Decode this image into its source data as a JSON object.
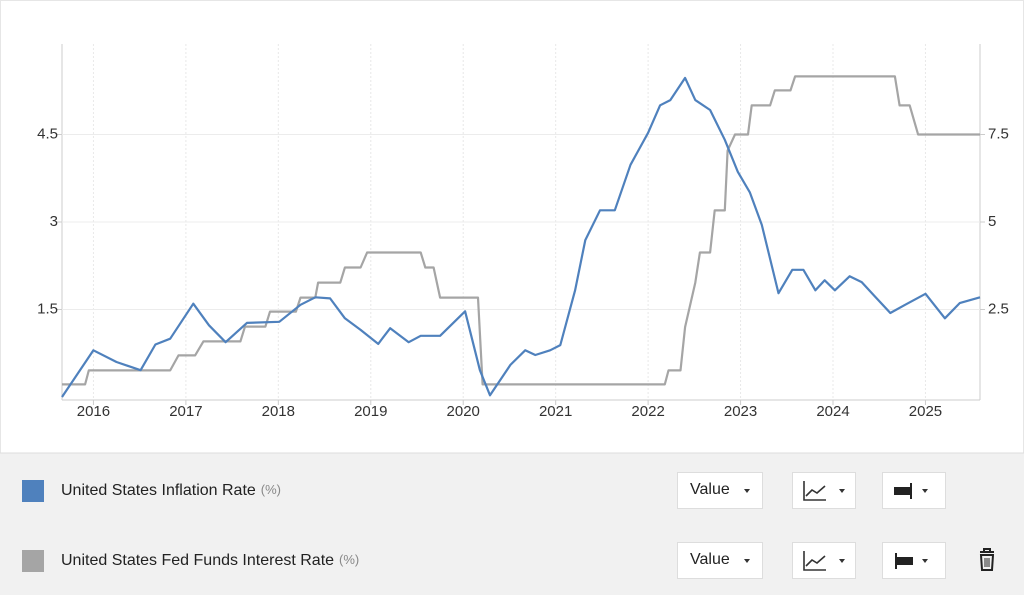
{
  "chart_data": {
    "type": "line",
    "xlim": [
      2015.66,
      2025.59
    ],
    "xticks": [
      2016,
      2017,
      2018,
      2019,
      2020,
      2021,
      2022,
      2023,
      2024,
      2025
    ],
    "ylim": [
      0,
      6
    ],
    "yticks": [
      1.5,
      3,
      4.5
    ],
    "y2lim": [
      0,
      10
    ],
    "y2ticks": [
      2.5,
      5,
      7.5
    ],
    "grid": true,
    "series": [
      {
        "name": "United States Inflation Rate",
        "unit": "(%)",
        "mode": "Value",
        "color": "#4f81bd",
        "x": [
          2015.66,
          2016.0,
          2016.25,
          2016.51,
          2016.67,
          2016.83,
          2017.08,
          2017.25,
          2017.43,
          2017.66,
          2018.01,
          2018.24,
          2018.4,
          2018.56,
          2018.72,
          2018.89,
          2019.08,
          2019.21,
          2019.41,
          2019.54,
          2019.75,
          2020.02,
          2020.18,
          2020.29,
          2020.51,
          2020.67,
          2020.78,
          2020.94,
          2021.05,
          2021.21,
          2021.32,
          2021.48,
          2021.64,
          2021.81,
          2022.0,
          2022.13,
          2022.24,
          2022.4,
          2022.51,
          2022.67,
          2022.83,
          2022.97,
          2023.1,
          2023.23,
          2023.41,
          2023.56,
          2023.68,
          2023.81,
          2023.91,
          2024.02,
          2024.18,
          2024.31,
          2024.45,
          2024.62,
          2024.78,
          2025.0,
          2025.21,
          2025.37,
          2025.59
        ],
        "values": [
          0,
          0.8,
          0.6,
          0.46,
          0.9,
          1.0,
          1.6,
          1.23,
          0.94,
          1.27,
          1.29,
          1.58,
          1.71,
          1.69,
          1.35,
          1.15,
          0.91,
          1.18,
          0.94,
          1.05,
          1.05,
          1.47,
          0.46,
          0.03,
          0.55,
          0.8,
          0.72,
          0.8,
          0.89,
          1.83,
          2.69,
          3.2,
          3.2,
          3.98,
          4.53,
          5.0,
          5.09,
          5.47,
          5.09,
          4.92,
          4.41,
          3.86,
          3.51,
          2.95,
          1.78,
          2.18,
          2.18,
          1.83,
          2.0,
          1.83,
          2.07,
          1.97,
          1.73,
          1.44,
          1.58,
          1.77,
          1.35,
          1.61,
          1.71
        ]
      },
      {
        "name": "United States Fed Funds Interest Rate",
        "unit": "(%)",
        "mode": "Value",
        "color": "#a5a5a5",
        "axis": "y2",
        "x": [
          2015.66,
          2015.91,
          2015.95,
          2016.83,
          2016.92,
          2017.1,
          2017.19,
          2017.59,
          2017.64,
          2017.86,
          2017.91,
          2018.19,
          2018.24,
          2018.4,
          2018.43,
          2018.67,
          2018.72,
          2018.89,
          2018.96,
          2019.54,
          2019.59,
          2019.68,
          2019.75,
          2020.16,
          2020.21,
          2022.18,
          2022.22,
          2022.35,
          2022.4,
          2022.51,
          2022.56,
          2022.67,
          2022.72,
          2022.83,
          2022.86,
          2022.94,
          2023.08,
          2023.12,
          2023.32,
          2023.37,
          2023.54,
          2023.59,
          2024.67,
          2024.72,
          2024.83,
          2024.92,
          2025.59
        ],
        "values": [
          0.36,
          0.36,
          0.76,
          0.76,
          1.19,
          1.19,
          1.59,
          1.59,
          2.01,
          2.01,
          2.44,
          2.44,
          2.84,
          2.84,
          3.27,
          3.27,
          3.7,
          3.7,
          4.13,
          4.13,
          3.7,
          3.7,
          2.84,
          2.84,
          0.36,
          0.36,
          0.76,
          0.76,
          2.0,
          3.27,
          4.13,
          4.13,
          5.33,
          5.33,
          7.04,
          7.5,
          7.5,
          8.33,
          8.33,
          8.76,
          8.76,
          9.16,
          9.16,
          8.33,
          8.33,
          7.5,
          7.5
        ]
      }
    ]
  }
}
